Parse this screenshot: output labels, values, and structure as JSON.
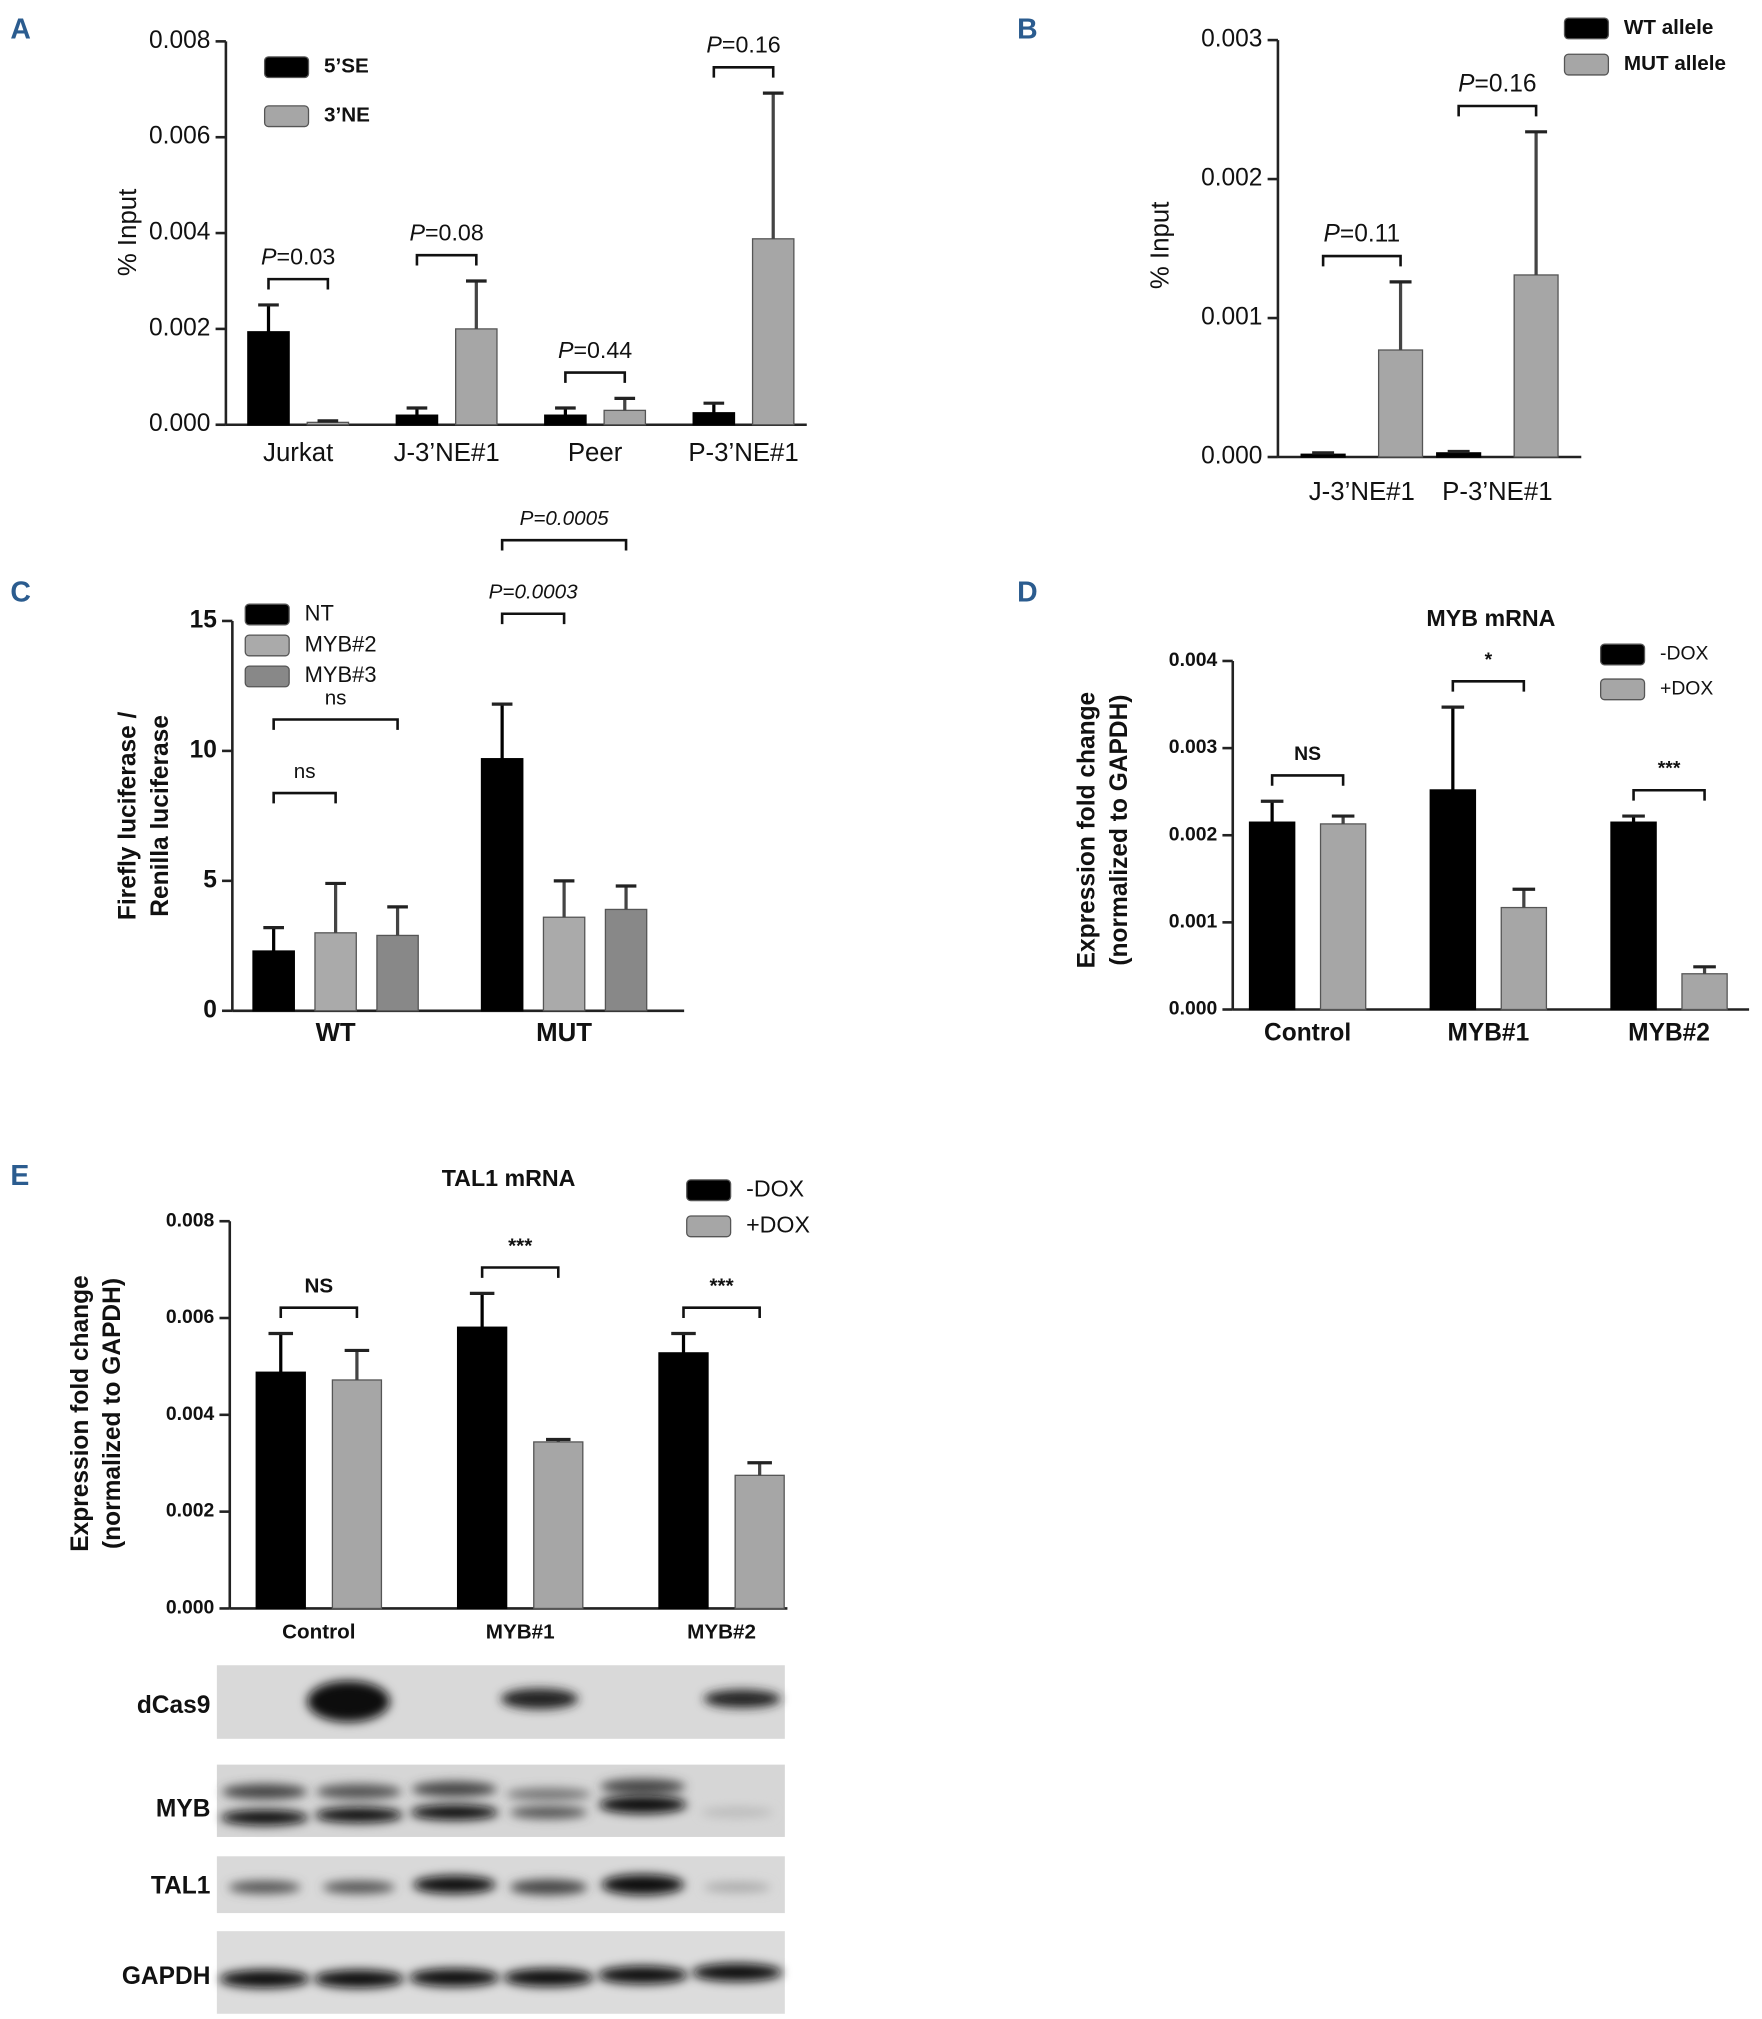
{
  "chart_data": [
    {
      "type": "bar",
      "panel": "A",
      "ylabel": [
        "% Input"
      ],
      "categories": [
        "Jurkat",
        "J-3’NE#1",
        "Peer",
        "P-3’NE#1"
      ],
      "series": [
        {
          "name": "5’SE",
          "color": "#000000",
          "values": [
            0.00194,
            0.0002,
            0.0002,
            0.00025
          ],
          "errors": [
            0.00056,
            0.00015,
            0.00015,
            0.0002
          ]
        },
        {
          "name": "3’NE",
          "color": "#a6a6a6",
          "values": [
            5e-05,
            0.002,
            0.0003,
            0.00388
          ],
          "errors": [
            3e-05,
            0.001,
            0.00025,
            0.00304
          ]
        }
      ],
      "ylim": [
        0,
        0.008
      ],
      "yticks": [
        {
          "value": 0,
          "label": "0.000"
        },
        0.002,
        0.004,
        0.006,
        0.008
      ],
      "legend": "upper left",
      "annotations": [
        {
          "label": "P=0.03",
          "category": 0
        },
        {
          "label": "P=0.08",
          "category": 1
        },
        {
          "label": "P=0.44",
          "category": 2
        },
        {
          "label": "P=0.16",
          "category": 3
        }
      ]
    },
    {
      "type": "bar",
      "panel": "B",
      "ylabel": [
        "% Input"
      ],
      "categories": [
        "J-3’NE#1",
        "P-3’NE#1"
      ],
      "series": [
        {
          "name": "WT allele",
          "color": "#000000",
          "values": [
            2e-05,
            3e-05
          ],
          "errors": [
            1e-05,
            1e-05
          ]
        },
        {
          "name": "MUT allele",
          "color": "#a6a6a6",
          "values": [
            0.00077,
            0.00131
          ],
          "errors": [
            0.00049,
            0.00103
          ]
        }
      ],
      "ylim": [
        0,
        0.003
      ],
      "yticks": [
        {
          "value": 0,
          "label": "0.000"
        },
        0.001,
        0.002,
        0.003
      ],
      "legend": "upper right",
      "annotations": [
        {
          "label": "P=0.11",
          "category": 0
        },
        {
          "label": "P=0.16",
          "category": 1
        }
      ]
    },
    {
      "type": "bar",
      "panel": "C",
      "ylabel": [
        "Firefly luciferase /",
        "Renilla luciferase"
      ],
      "categories": [
        "WT",
        "MUT"
      ],
      "series": [
        {
          "name": "NT",
          "color": "#000000",
          "values": [
            2.3,
            9.7
          ],
          "errors": [
            0.9,
            2.1
          ]
        },
        {
          "name": "MYB#2",
          "color": "#aaaaaa",
          "values": [
            3.0,
            3.6
          ],
          "errors": [
            1.9,
            1.4
          ]
        },
        {
          "name": "MYB#3",
          "color": "#888888",
          "values": [
            2.9,
            3.9
          ],
          "errors": [
            1.1,
            0.9
          ]
        }
      ],
      "ylim": [
        0,
        15
      ],
      "yticks": [
        0,
        5,
        10,
        15
      ],
      "legend": "upper left",
      "annotations": [
        {
          "label": "ns",
          "category": 0,
          "series": [
            0,
            1
          ]
        },
        {
          "label": "ns",
          "category": 0,
          "series": [
            0,
            2
          ]
        },
        {
          "label": "P=0.0003",
          "category": 1,
          "series": [
            0,
            1
          ]
        },
        {
          "label": "P=0.0005",
          "category": 1,
          "series": [
            0,
            2
          ]
        }
      ]
    },
    {
      "type": "bar",
      "panel": "D",
      "title": "MYB mRNA",
      "ylabel": [
        "Expression fold change",
        "(normalized to  GAPDH)"
      ],
      "categories": [
        "Control",
        "MYB#1",
        "MYB#2"
      ],
      "series": [
        {
          "name": "-DOX",
          "color": "#000000",
          "values": [
            0.00215,
            0.00252,
            0.00215
          ],
          "errors": [
            0.00024,
            0.00095,
            7e-05
          ]
        },
        {
          "name": "+DOX",
          "color": "#a6a6a6",
          "values": [
            0.00213,
            0.00117,
            0.00041
          ],
          "errors": [
            9e-05,
            0.00021,
            8e-05
          ]
        }
      ],
      "ylim": [
        0,
        0.004
      ],
      "yticks": [
        {
          "value": 0,
          "label": "0.000"
        },
        0.001,
        0.002,
        0.003,
        0.004
      ],
      "legend": "upper right",
      "annotations": [
        {
          "label": "NS",
          "category": 0
        },
        {
          "label": "*",
          "category": 1
        },
        {
          "label": "***",
          "category": 2
        }
      ]
    },
    {
      "type": "bar",
      "panel": "E",
      "title": "TAL1 mRNA",
      "ylabel": [
        "Expression fold change",
        "(normalized to  GAPDH)"
      ],
      "categories": [
        "Control",
        "MYB#1",
        "MYB#2"
      ],
      "series": [
        {
          "name": "-DOX",
          "color": "#000000",
          "values": [
            0.00488,
            0.00581,
            0.00528
          ],
          "errors": [
            0.0008,
            0.0007,
            0.0004
          ]
        },
        {
          "name": "+DOX",
          "color": "#a6a6a6",
          "values": [
            0.00472,
            0.00344,
            0.00275
          ],
          "errors": [
            0.00061,
            5e-05,
            0.00026
          ]
        }
      ],
      "ylim": [
        0,
        0.008
      ],
      "yticks": [
        {
          "value": 0,
          "label": "0.000"
        },
        0.002,
        0.004,
        0.006,
        0.008
      ],
      "legend": "upper right",
      "annotations": [
        {
          "label": "NS",
          "category": 0
        },
        {
          "label": "***",
          "category": 1
        },
        {
          "label": "***",
          "category": 2
        }
      ]
    }
  ],
  "western_blot": {
    "labels": [
      "dCas9",
      "MYB",
      "TAL1",
      "GAPDH"
    ]
  }
}
